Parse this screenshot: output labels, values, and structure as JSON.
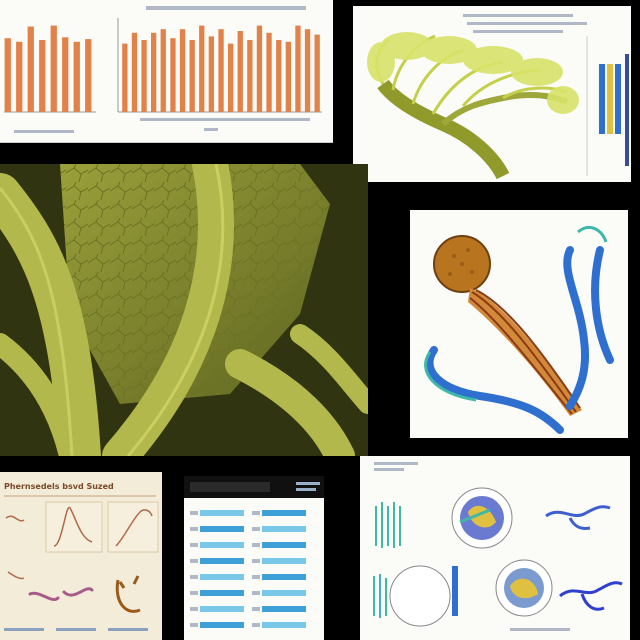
{
  "panels": {
    "bar_charts": {
      "kind": "bar-chart-sheet"
    },
    "tree_diagram": {
      "kind": "branching-structure-illustration"
    },
    "photo": {
      "kind": "micrograph-photo"
    },
    "muscle_diagram": {
      "kind": "fiber-illustration"
    },
    "curves_sheet": {
      "kind": "curve-sketch-sheet",
      "header": "Phernsedels bsvd Suzed"
    },
    "table_sheet": {
      "kind": "table-sheet"
    },
    "circles_sheet": {
      "kind": "circle-diagram-sheet"
    }
  },
  "colors": {
    "bar": "#e0824a",
    "moss": "#b9c24a",
    "moss_dark": "#6d7422",
    "blue": "#2f6fd0",
    "teal": "#3fb8a8",
    "fiber": "#c96a2a"
  },
  "chart_data": [
    {
      "type": "bar",
      "values": [
        82,
        78,
        95,
        80,
        96,
        83,
        78,
        81
      ]
    },
    {
      "type": "bar",
      "values": [
        76,
        88,
        80,
        88,
        92,
        82,
        92,
        80,
        96,
        84,
        92,
        76,
        90,
        80,
        96,
        88,
        80,
        78,
        96,
        92,
        86
      ]
    }
  ]
}
